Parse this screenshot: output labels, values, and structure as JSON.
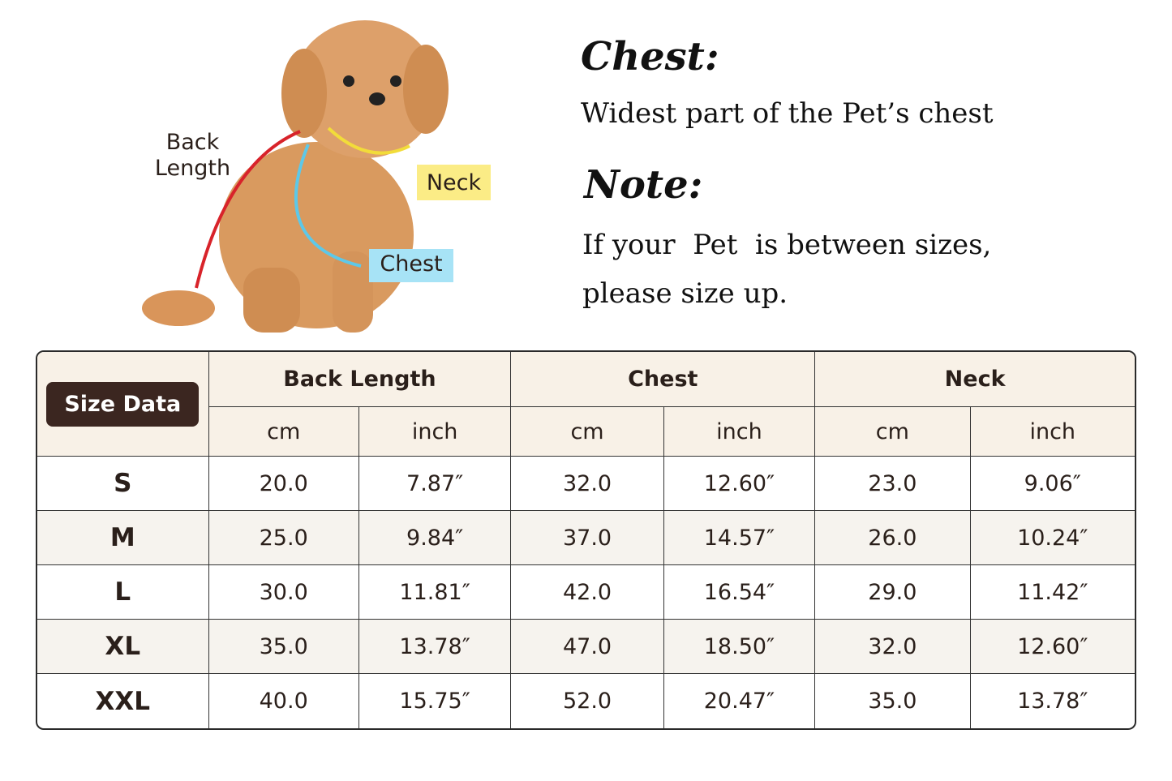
{
  "diagram": {
    "labels": {
      "back_length": "Back Length",
      "neck": "Neck",
      "chest": "Chest"
    }
  },
  "notes": {
    "chest_title": "Chest:",
    "chest_text": "Widest part of the Pet’s chest",
    "note_title": "Note:",
    "note_lines": [
      "If your  Pet  is between sizes,",
      "please size up."
    ]
  },
  "table": {
    "corner": "Size Data",
    "groups": [
      "Back Length",
      "Chest",
      "Neck"
    ],
    "units": [
      "cm",
      "inch",
      "cm",
      "inch",
      "cm",
      "inch"
    ],
    "rows": [
      [
        "S",
        "20.0",
        "7.87″",
        "32.0",
        "12.60″",
        "23.0",
        "9.06″"
      ],
      [
        "M",
        "25.0",
        "9.84″",
        "37.0",
        "14.57″",
        "26.0",
        "10.24″"
      ],
      [
        "L",
        "30.0",
        "11.81″",
        "42.0",
        "16.54″",
        "29.0",
        "11.42″"
      ],
      [
        "XL",
        "35.0",
        "13.78″",
        "47.0",
        "18.50″",
        "32.0",
        "12.60″"
      ],
      [
        "XXL",
        "40.0",
        "15.75″",
        "52.0",
        "20.47″",
        "35.0",
        "13.78″"
      ]
    ]
  }
}
